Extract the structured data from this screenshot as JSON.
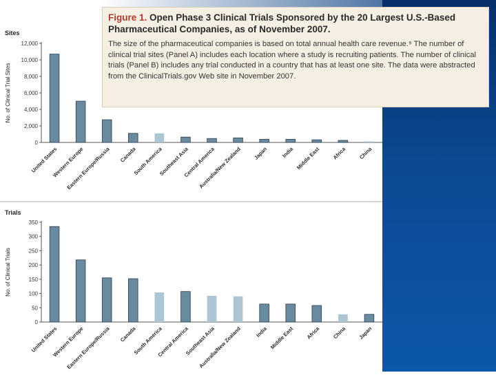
{
  "caption": {
    "figure_label": "Figure 1.",
    "title": "Open Phase 3 Clinical Trials Sponsored by the 20 Largest U.S.-Based Pharmaceutical Companies, as of November 2007.",
    "body": "The size of the pharmaceutical companies is based on total annual health care revenue.⁹ The number of clinical trial sites (Panel A) includes each location where a study is recruiting patients. The number of clinical trials (Panel B) includes any trial conducted in a country that has at least one site. The data were abstracted from the ClinicalTrials.gov Web site in November 2007."
  },
  "colors": {
    "dark_bar": "#6a8aa0",
    "light_bar": "#adc6d4",
    "bar_stroke": "#2b3f4f",
    "axis": "#555555"
  },
  "chart_data": [
    {
      "type": "bar",
      "panel_label": "Sites",
      "ylabel": "No. of Clinical Trial Sites",
      "ylim": [
        0,
        12000
      ],
      "yticks": [
        0,
        2000,
        4000,
        6000,
        8000,
        10000,
        12000
      ],
      "ytick_labels": [
        "0",
        "2,000",
        "4,000",
        "6,000",
        "8,000",
        "10,000",
        "12,000"
      ],
      "categories": [
        "United States",
        "Western Europe",
        "Eastern Europe/Russia",
        "Canada",
        "South America",
        "Southeast Asia",
        "Central America",
        "Australia/New Zealand",
        "Japan",
        "India",
        "Middle East",
        "Africa",
        "China"
      ],
      "values": [
        10700,
        5000,
        2750,
        1100,
        1100,
        650,
        480,
        550,
        380,
        380,
        320,
        250,
        130
      ],
      "bar_shade": [
        "dark",
        "dark",
        "dark",
        "dark",
        "light",
        "dark",
        "dark",
        "dark",
        "dark",
        "dark",
        "dark",
        "dark",
        "light"
      ]
    },
    {
      "type": "bar",
      "panel_label": "Trials",
      "ylabel": "No. of Clinical Trials",
      "ylim": [
        0,
        350
      ],
      "yticks": [
        0,
        50,
        100,
        150,
        200,
        250,
        300,
        350
      ],
      "ytick_labels": [
        "0",
        "50",
        "100",
        "150",
        "200",
        "250",
        "300",
        "350"
      ],
      "categories": [
        "United States",
        "Western Europe",
        "Eastern Europe/Russia",
        "Canada",
        "South America",
        "Central America",
        "Southeast Asia",
        "Australia/New Zealand",
        "India",
        "Middle East",
        "Africa",
        "China",
        "Japan"
      ],
      "values": [
        335,
        218,
        155,
        152,
        104,
        107,
        92,
        90,
        63,
        63,
        58,
        27,
        27
      ],
      "bar_shade": [
        "dark",
        "dark",
        "dark",
        "dark",
        "light",
        "dark",
        "light",
        "light",
        "dark",
        "dark",
        "dark",
        "light",
        "dark"
      ]
    }
  ]
}
